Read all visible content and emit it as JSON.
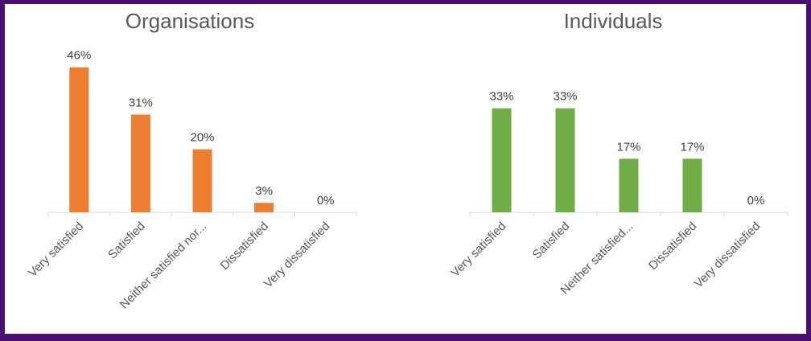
{
  "colors": {
    "organisations": "#ed7d31",
    "individuals": "#70ad47",
    "axis": "#d9d9d9",
    "frame": "#4a0f73"
  },
  "chart_data": [
    {
      "type": "bar",
      "title": "Organisations",
      "categories": [
        "Very satisfied",
        "Satisfied",
        "Neither satisfied nor...",
        "Dissatisfied",
        "Very dissatisfied"
      ],
      "values": [
        46,
        31,
        20,
        3,
        0
      ],
      "data_labels": [
        "46%",
        "31%",
        "20%",
        "3%",
        "0%"
      ],
      "unit": "%",
      "ylim": [
        0,
        50
      ],
      "grid": false,
      "legend": "none",
      "color": "#ed7d31"
    },
    {
      "type": "bar",
      "title": "Individuals",
      "categories": [
        "Very satisfied",
        "Satisfied",
        "Neither satisfied...",
        "Dissatisfied",
        "Very dissatisfied"
      ],
      "values": [
        33,
        33,
        17,
        17,
        0
      ],
      "data_labels": [
        "33%",
        "33%",
        "17%",
        "17%",
        "0%"
      ],
      "unit": "%",
      "ylim": [
        0,
        50
      ],
      "grid": false,
      "legend": "none",
      "color": "#70ad47"
    }
  ]
}
